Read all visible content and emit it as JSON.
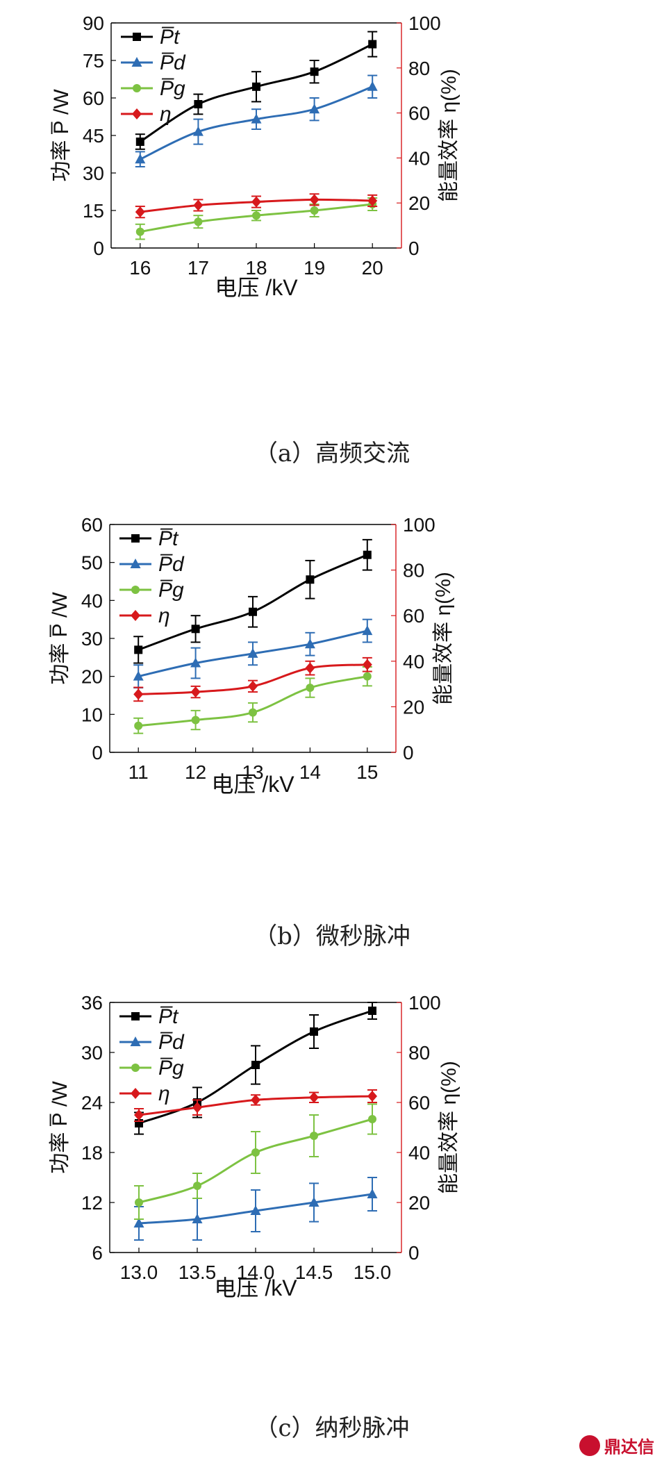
{
  "watermark": {
    "text": "鼎达信"
  },
  "chart_data": [
    {
      "type": "line",
      "caption": "（a）高频交流",
      "xlabel": "电压 /kV",
      "ylabel_left": "功率 P̅ /W",
      "ylabel_right": "能量效率 η(%)",
      "x": [
        16,
        17,
        18,
        19,
        20
      ],
      "x_ticks": [
        "16",
        "17",
        "18",
        "19",
        "20"
      ],
      "xlim": [
        15.5,
        20.5
      ],
      "ylim_left": [
        0,
        90
      ],
      "yticks_left": [
        0,
        15,
        30,
        45,
        60,
        75,
        90
      ],
      "ylim_right": [
        0,
        100
      ],
      "yticks_right": [
        0,
        20,
        40,
        60,
        80,
        100
      ],
      "legend_position": "top-left",
      "series": [
        {
          "name": "P̅t",
          "axis": "left",
          "color": "#000000",
          "marker": "square",
          "values": [
            42.5,
            57.5,
            64.5,
            70.5,
            81.5
          ],
          "errors": [
            3,
            4,
            6,
            4.5,
            5
          ]
        },
        {
          "name": "P̅d",
          "axis": "left",
          "color": "#2e6db4",
          "marker": "triangle",
          "values": [
            35.5,
            46.5,
            51.5,
            55.5,
            64.5
          ],
          "errors": [
            3,
            5,
            4,
            4.5,
            4.5
          ]
        },
        {
          "name": "P̅g",
          "axis": "left",
          "color": "#7dc242",
          "marker": "circle",
          "values": [
            6.5,
            10.5,
            13,
            15,
            17.5
          ],
          "errors": [
            3,
            2.5,
            2,
            2.5,
            2.5
          ]
        },
        {
          "name": "η",
          "axis": "right",
          "color": "#d7191c",
          "marker": "diamond",
          "values": [
            16,
            19,
            20.5,
            21.5,
            21
          ],
          "errors": [
            2.5,
            2.5,
            2.5,
            2.5,
            2.5
          ]
        }
      ]
    },
    {
      "type": "line",
      "caption": "（b）微秒脉冲",
      "xlabel": "电压 /kV",
      "ylabel_left": "功率 P̅ /W",
      "ylabel_right": "能量效率 η(%)",
      "x": [
        11,
        12,
        13,
        14,
        15
      ],
      "x_ticks": [
        "11",
        "12",
        "13",
        "14",
        "15"
      ],
      "xlim": [
        10.5,
        15.5
      ],
      "ylim_left": [
        0,
        60
      ],
      "yticks_left": [
        0,
        10,
        20,
        30,
        40,
        50,
        60
      ],
      "ylim_right": [
        0,
        100
      ],
      "yticks_right": [
        0,
        20,
        40,
        60,
        80,
        100
      ],
      "legend_position": "top-left",
      "series": [
        {
          "name": "P̅t",
          "axis": "left",
          "color": "#000000",
          "marker": "square",
          "values": [
            27,
            32.5,
            37,
            45.5,
            52
          ],
          "errors": [
            3.5,
            3.5,
            4,
            5,
            4
          ]
        },
        {
          "name": "P̅d",
          "axis": "left",
          "color": "#2e6db4",
          "marker": "triangle",
          "values": [
            20,
            23.5,
            26,
            28.5,
            32
          ],
          "errors": [
            3,
            4,
            3,
            3,
            3
          ]
        },
        {
          "name": "P̅g",
          "axis": "left",
          "color": "#7dc242",
          "marker": "circle",
          "values": [
            7,
            8.5,
            10.5,
            17,
            20
          ],
          "errors": [
            2,
            2.5,
            2.5,
            2.5,
            2.5
          ]
        },
        {
          "name": "η",
          "axis": "right",
          "color": "#d7191c",
          "marker": "diamond",
          "values": [
            25.5,
            26.5,
            29,
            37,
            38.5
          ],
          "errors": [
            3,
            2.5,
            2.5,
            3,
            3
          ]
        }
      ]
    },
    {
      "type": "line",
      "caption": "（c）纳秒脉冲",
      "xlabel": "电压 /kV",
      "ylabel_left": "功率 P̅ /W",
      "ylabel_right": "能量效率 η(%)",
      "x": [
        13.0,
        13.5,
        14.0,
        14.5,
        15.0
      ],
      "x_ticks": [
        "13.0",
        "13.5",
        "14.0",
        "14.5",
        "15.0"
      ],
      "xlim": [
        12.75,
        15.25
      ],
      "ylim_left": [
        6,
        36
      ],
      "yticks_left": [
        6,
        12,
        18,
        24,
        30,
        36
      ],
      "ylim_right": [
        0,
        100
      ],
      "yticks_right": [
        0,
        20,
        40,
        60,
        80,
        100
      ],
      "legend_position": "top-left",
      "series": [
        {
          "name": "P̅t",
          "axis": "left",
          "color": "#000000",
          "marker": "square",
          "values": [
            21.5,
            24,
            28.5,
            32.5,
            35
          ],
          "errors": [
            1.3,
            1.8,
            2.3,
            2,
            1
          ]
        },
        {
          "name": "P̅d",
          "axis": "left",
          "color": "#2e6db4",
          "marker": "triangle",
          "values": [
            9.5,
            10,
            11,
            12,
            13
          ],
          "errors": [
            2,
            2.5,
            2.5,
            2.3,
            2
          ]
        },
        {
          "name": "P̅g",
          "axis": "left",
          "color": "#7dc242",
          "marker": "circle",
          "values": [
            12,
            14,
            18,
            20,
            22
          ],
          "errors": [
            2,
            1.5,
            2.5,
            2.5,
            1.8
          ]
        },
        {
          "name": "η",
          "axis": "right",
          "color": "#d7191c",
          "marker": "diamond",
          "values": [
            55,
            58,
            61,
            62,
            62.5
          ],
          "errors": [
            2.5,
            3,
            2,
            2,
            2.5
          ]
        }
      ]
    }
  ]
}
